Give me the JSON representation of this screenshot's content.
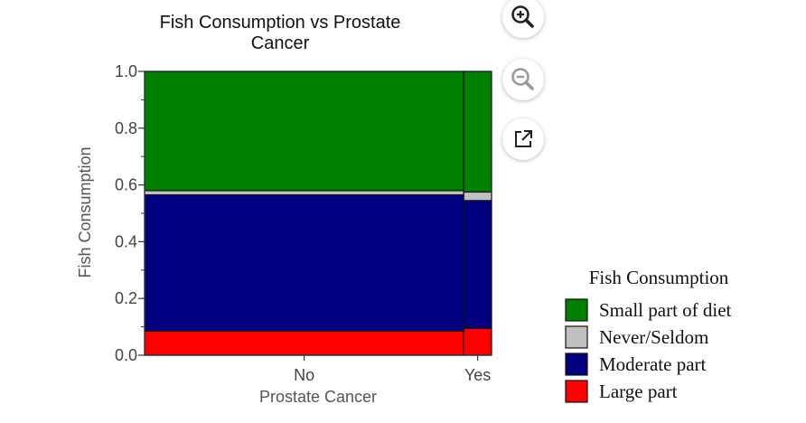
{
  "chart_data": {
    "type": "mosaic",
    "title": "Fish Consumption vs Prostate Cancer",
    "title_lines": [
      "Fish Consumption vs Prostate",
      "Cancer"
    ],
    "xlabel": "Prostate Cancer",
    "ylabel": "Fish Consumption",
    "ylim": [
      0,
      1
    ],
    "yticks": [
      "0.0",
      "0.2",
      "0.4",
      "0.6",
      "0.8",
      "1.0"
    ],
    "categories": [
      "No",
      "Yes"
    ],
    "column_proportions": [
      0.92,
      0.08
    ],
    "series": [
      {
        "name": "Large part",
        "color": "#ff0000",
        "values": [
          0.085,
          0.095
        ]
      },
      {
        "name": "Moderate part",
        "color": "#000080",
        "values": [
          0.48,
          0.45
        ]
      },
      {
        "name": "Never/Seldom",
        "color": "#c0c0c0",
        "values": [
          0.015,
          0.03
        ]
      },
      {
        "name": "Small part of diet",
        "color": "#008000",
        "values": [
          0.42,
          0.425
        ]
      }
    ],
    "legend": {
      "title": "Fish Consumption",
      "position": "bottom-right",
      "order": [
        "Small part of diet",
        "Never/Seldom",
        "Moderate part",
        "Large part"
      ]
    }
  },
  "toolbar": {
    "zoom_in_icon": "zoom-in-icon",
    "zoom_out_icon": "zoom-out-icon",
    "open_external_icon": "open-external-icon"
  }
}
